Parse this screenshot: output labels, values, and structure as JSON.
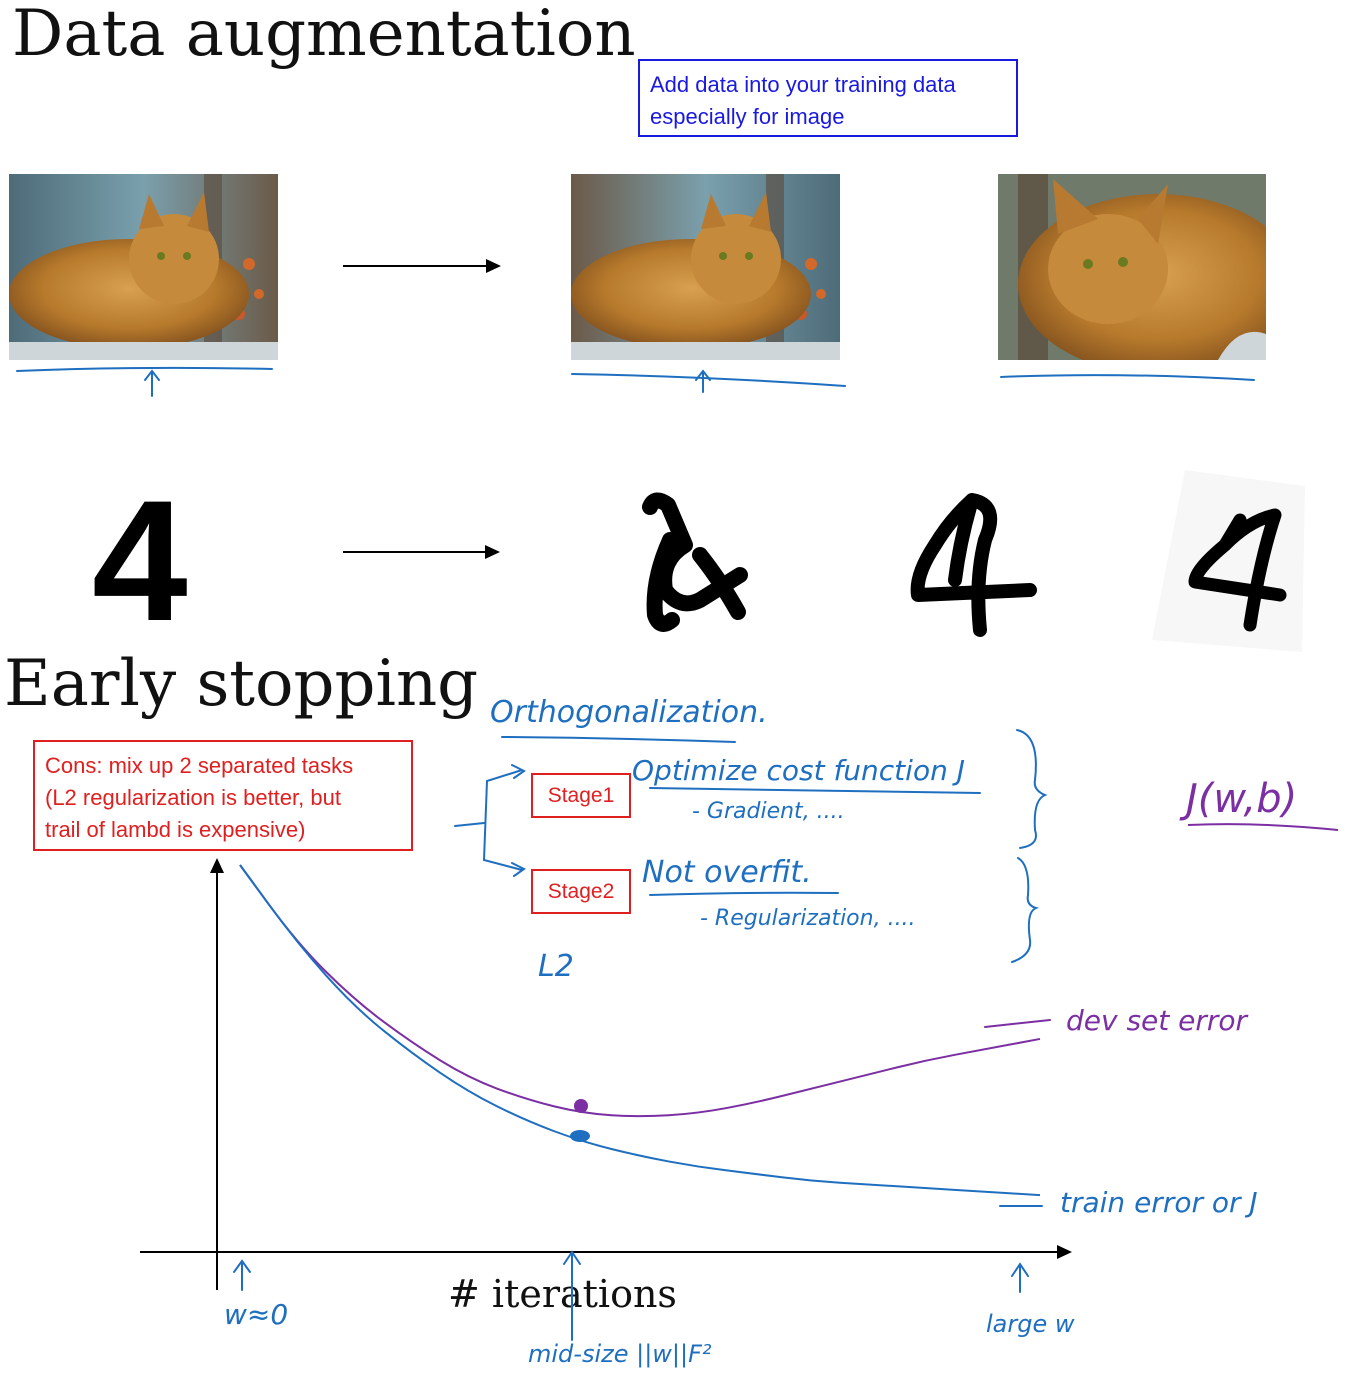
{
  "titles": {
    "data_augmentation": "Data augmentation",
    "early_stopping": "Early stopping"
  },
  "notes": {
    "augmentation_note": "Add data into your training data\nespecially for image",
    "cons_note": "Cons: mix up 2 separated tasks\n(L2 regularization is better, but\ntrail of lambd is expensive)"
  },
  "stages": {
    "stage1": "Stage1",
    "stage2": "Stage2"
  },
  "digits": {
    "original": "4"
  },
  "handwriting": {
    "orthogonalization": "Orthogonalization.",
    "optimize": "Optimize  cost  function  J",
    "gradient": "- Gradient, ....",
    "not_overfit": "Not  overfit.",
    "regularization": "- Regularization, ....",
    "l2": "L2",
    "j_wb": "J(w,b)",
    "dev_error": "dev  set  error",
    "train_error": "train  error   or   J",
    "w_zero": "w≈0",
    "mid_size": "mid-size  ||w||F²",
    "large_w": "large  w"
  },
  "chart_data": {
    "type": "line",
    "xlabel": "# iterations",
    "ylabel": "",
    "series": [
      {
        "name": "dev set error",
        "color": "#7b2fa3",
        "values": [
          1.0,
          0.78,
          0.62,
          0.5,
          0.4,
          0.34,
          0.3,
          0.29,
          0.3,
          0.33,
          0.37,
          0.41,
          0.45,
          0.48,
          0.51
        ]
      },
      {
        "name": "train error or J",
        "color": "#1f6fc0",
        "values": [
          1.0,
          0.78,
          0.6,
          0.47,
          0.36,
          0.28,
          0.22,
          0.18,
          0.15,
          0.13,
          0.11,
          0.1,
          0.09,
          0.08,
          0.07
        ]
      }
    ],
    "colors": {
      "axis": "#000000",
      "ink_blue": "#1f6fc0",
      "ink_purple": "#7b2fa3",
      "note_red": "#e02020",
      "note_blue": "#1a1adf"
    }
  }
}
